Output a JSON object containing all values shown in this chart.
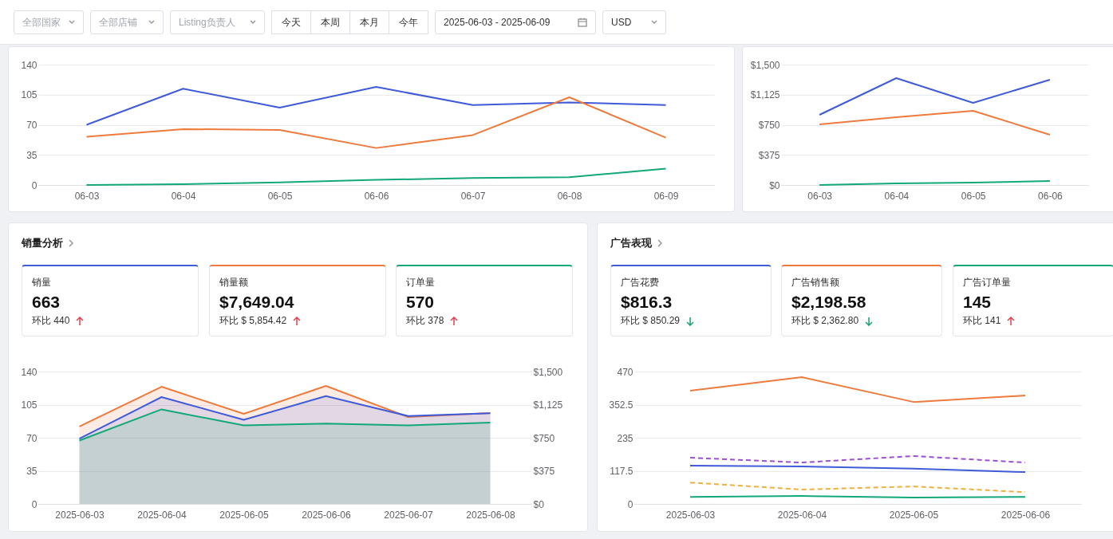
{
  "chart_data": [
    {
      "type": "other",
      "annotations": [
        "全部国家",
        "全部店铺",
        "Listing负责人",
        "今天",
        "本周",
        "本月",
        "今年",
        "2025-06-03  -  2025-06-09",
        "USD"
      ]
    },
    {
      "type": "line",
      "categories": [
        "06-03",
        "06-04",
        "06-05",
        "06-06",
        "06-07",
        "06-08",
        "06-09"
      ],
      "ylim": [
        0,
        140
      ],
      "yticks": [
        0,
        35,
        70,
        105,
        140
      ],
      "grid": "y",
      "series": [
        {
          "color": "#3f5bd9",
          "values": [
            70,
            112,
            90,
            114,
            93,
            96,
            93
          ]
        },
        {
          "color": "#ee7a3d",
          "values": [
            56,
            65,
            64,
            43,
            58,
            102,
            55
          ]
        },
        {
          "color": "#12a87a",
          "values": [
            0,
            1,
            3,
            6,
            8,
            9,
            19
          ]
        }
      ]
    },
    {
      "type": "line",
      "categories": [
        "06-03",
        "06-04",
        "06-05",
        "06-06"
      ],
      "ylim": [
        0,
        1500
      ],
      "yticks": [
        {
          "value": 0,
          "label": "$0"
        },
        {
          "value": 375,
          "label": "$375"
        },
        {
          "value": 750,
          "label": "$750"
        },
        {
          "value": 1125,
          "label": "$1,125"
        },
        {
          "value": 1500,
          "label": "$1,500"
        }
      ],
      "grid": "y",
      "series": [
        {
          "color": "#3f5bd9",
          "values": [
            874,
            1331,
            1023,
            1311
          ]
        },
        {
          "color": "#ee7a3d",
          "values": [
            755,
            844,
            924,
            626
          ]
        },
        {
          "color": "#12a87a",
          "values": [
            0,
            20,
            30,
            50
          ]
        }
      ]
    },
    {
      "type": "other",
      "title": "销量分析",
      "colors": [
        "#3f5bd9",
        "#ee7a3d",
        "#12a87a"
      ],
      "annotations": [
        "销量",
        "663",
        "环比 440",
        "销量额",
        "$7,649.04",
        "环比 $ 5,854.42",
        "订单量",
        "570",
        "环比 378"
      ]
    },
    {
      "type": "area",
      "categories": [
        "2025-06-03",
        "2025-06-04",
        "2025-06-05",
        "2025-06-06",
        "2025-06-07",
        "2025-06-08"
      ],
      "ylim": [
        0,
        140
      ],
      "yticks": [
        0,
        35,
        70,
        105,
        140
      ],
      "y2lim": [
        0,
        1500
      ],
      "y2ticks": [
        {
          "value": 0,
          "label": "$0"
        },
        {
          "value": 375,
          "label": "$375"
        },
        {
          "value": 750,
          "label": "$750"
        },
        {
          "value": 1125,
          "label": "$1,125"
        },
        {
          "value": 1500,
          "label": "$1,500"
        }
      ],
      "grid": "y",
      "series": [
        {
          "color": "#ee7a3d",
          "axis": "y2",
          "values": [
            877,
            1328,
            1021,
            1337,
            985,
            1030
          ]
        },
        {
          "color": "#3f5bd9",
          "values": [
            69,
            113,
            89,
            114,
            93,
            96
          ]
        },
        {
          "color": "#12a87a",
          "values": [
            67,
            100,
            83,
            85,
            83,
            86
          ]
        }
      ]
    },
    {
      "type": "other",
      "title": "广告表现",
      "colors": [
        "#3f5bd9",
        "#ee7a3d",
        "#12a87a"
      ],
      "annotations": [
        "广告花费",
        "$816.3",
        "环比 $ 850.29",
        "广告销售额",
        "$2,198.58",
        "环比 $ 2,362.80",
        "广告订单量",
        "145",
        "环比 141"
      ]
    },
    {
      "type": "line",
      "categories": [
        "2025-06-03",
        "2025-06-04",
        "2025-06-05",
        "2025-06-06"
      ],
      "ylim": [
        0,
        470
      ],
      "yticks": [
        0,
        117.5,
        235,
        352.5,
        470
      ],
      "grid": "y",
      "series": [
        {
          "color": "#ee7a3d",
          "values": [
            402,
            450,
            362,
            385
          ]
        },
        {
          "color": "#9b4fd6",
          "line_style": "dashed",
          "values": [
            164,
            147,
            170,
            147
          ]
        },
        {
          "color": "#3f5bd9",
          "values": [
            136,
            133,
            125,
            113
          ]
        },
        {
          "color": "#f0b03c",
          "line_style": "dashed",
          "values": [
            76,
            51,
            62,
            42
          ]
        },
        {
          "color": "#12a87a",
          "values": [
            25,
            28,
            23,
            25
          ]
        }
      ]
    }
  ]
}
